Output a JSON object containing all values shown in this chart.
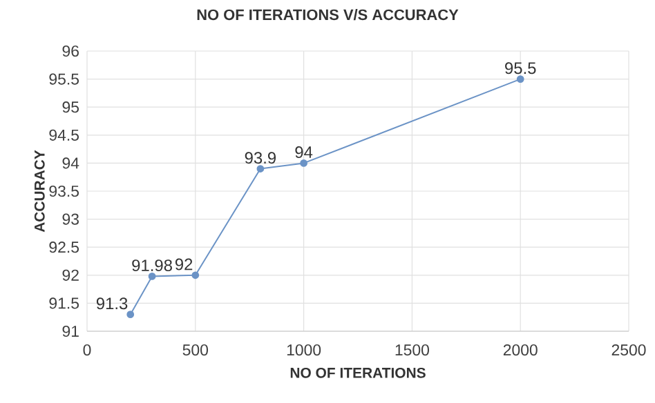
{
  "chart_data": {
    "type": "line",
    "title": "NO OF ITERATIONS V/S ACCURACY",
    "xlabel": "NO OF ITERATIONS",
    "ylabel": "ACCURACY",
    "x": [
      200,
      300,
      500,
      800,
      1000,
      2000
    ],
    "series": [
      {
        "color": "#6b93c6",
        "values": [
          91.3,
          91.98,
          92,
          93.9,
          94,
          95.5
        ]
      }
    ],
    "xlim": [
      0,
      2500
    ],
    "xticks": [
      0,
      500,
      1000,
      1500,
      2000,
      2500
    ],
    "ylim": [
      91,
      96
    ],
    "yticks": [
      91,
      91.5,
      92,
      92.5,
      93,
      93.5,
      94,
      94.5,
      95,
      95.5,
      96
    ],
    "grid": true,
    "marker": "circle",
    "line_style": "solid",
    "data_labels": true
  }
}
